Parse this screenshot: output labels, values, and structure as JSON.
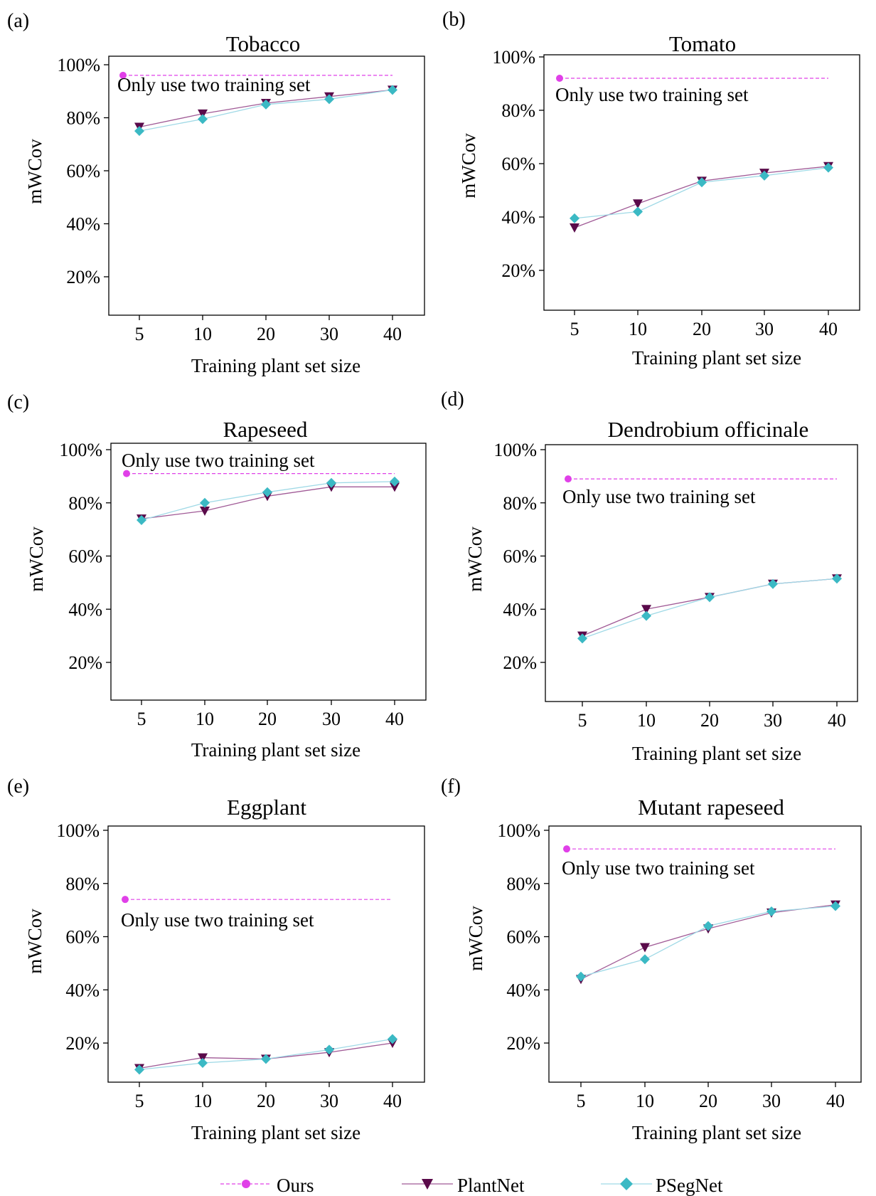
{
  "colors": {
    "ours": "#e040e8",
    "plantnet_marker": "#5a0a4a",
    "plantnet_line": "#a05a96",
    "psegnet_marker": "#3bb9c4",
    "psegnet_line": "#9fd9e6",
    "axis": "#000000"
  },
  "legend": {
    "ours": "Ours",
    "plantnet": "PlantNet",
    "psegnet": "PSegNet"
  },
  "chart_data": [
    {
      "type": "line",
      "panel_label": "(a)",
      "title": "Tobacco",
      "xlabel": "Training plant set size",
      "ylabel": "mWCov",
      "categories": [
        "5",
        "10",
        "20",
        "30",
        "40"
      ],
      "yticks": [
        "20%",
        "40%",
        "60%",
        "80%",
        "100%"
      ],
      "ylim": [
        0,
        100
      ],
      "ours": 96,
      "annotation": "Only use two training set",
      "series": [
        {
          "name": "PlantNet",
          "values": [
            76.5,
            81.5,
            85.5,
            88,
            90.5
          ]
        },
        {
          "name": "PSegNet",
          "values": [
            75,
            79.5,
            85,
            87,
            90.5
          ]
        }
      ]
    },
    {
      "type": "line",
      "panel_label": "(b)",
      "title": "Tomato",
      "xlabel": "Training plant set size",
      "ylabel": "mWCov",
      "categories": [
        "5",
        "10",
        "20",
        "30",
        "40"
      ],
      "yticks": [
        "20%",
        "40%",
        "60%",
        "80%",
        "100%"
      ],
      "ylim": [
        0,
        100
      ],
      "ours": 92,
      "annotation": "Only use two training set",
      "series": [
        {
          "name": "PlantNet",
          "values": [
            36,
            45,
            53.5,
            56.5,
            59
          ]
        },
        {
          "name": "PSegNet",
          "values": [
            39.5,
            42,
            53,
            55.5,
            58.5
          ]
        }
      ]
    },
    {
      "type": "line",
      "panel_label": "(c)",
      "title": "Rapeseed",
      "xlabel": "Training plant set size",
      "ylabel": "mWCov",
      "categories": [
        "5",
        "10",
        "20",
        "30",
        "40"
      ],
      "yticks": [
        "20%",
        "40%",
        "60%",
        "80%",
        "100%"
      ],
      "ylim": [
        0,
        100
      ],
      "ours": 91,
      "annotation": "Only use two training set",
      "series": [
        {
          "name": "PlantNet",
          "values": [
            74,
            77,
            82.5,
            86,
            86
          ]
        },
        {
          "name": "PSegNet",
          "values": [
            73.5,
            80,
            84,
            87.5,
            88
          ]
        }
      ]
    },
    {
      "type": "line",
      "panel_label": "(d)",
      "title": "Dendrobium officinale",
      "xlabel": "Training plant set size",
      "ylabel": "mWCov",
      "categories": [
        "5",
        "10",
        "20",
        "30",
        "40"
      ],
      "yticks": [
        "20%",
        "40%",
        "60%",
        "80%",
        "100%"
      ],
      "ylim": [
        0,
        100
      ],
      "ours": 89,
      "annotation": "Only use two training set",
      "series": [
        {
          "name": "PlantNet",
          "values": [
            30,
            40,
            44.5,
            49.5,
            51.5
          ]
        },
        {
          "name": "PSegNet",
          "values": [
            29,
            37.5,
            44.5,
            49.5,
            51.5
          ]
        }
      ]
    },
    {
      "type": "line",
      "panel_label": "(e)",
      "title": "Eggplant",
      "xlabel": "Training plant set size",
      "ylabel": "mWCov",
      "categories": [
        "5",
        "10",
        "20",
        "30",
        "40"
      ],
      "yticks": [
        "20%",
        "40%",
        "60%",
        "80%",
        "100%"
      ],
      "ylim": [
        0,
        100
      ],
      "ours": 74,
      "annotation": "Only use two training set",
      "series": [
        {
          "name": "PlantNet",
          "values": [
            10.5,
            14.5,
            14,
            16.5,
            20
          ]
        },
        {
          "name": "PSegNet",
          "values": [
            10,
            12.5,
            14,
            17.5,
            21.5
          ]
        }
      ]
    },
    {
      "type": "line",
      "panel_label": "(f)",
      "title": "Mutant rapeseed",
      "xlabel": "Training plant set size",
      "ylabel": "mWCov",
      "categories": [
        "5",
        "10",
        "20",
        "30",
        "40"
      ],
      "yticks": [
        "20%",
        "40%",
        "60%",
        "80%",
        "100%"
      ],
      "ylim": [
        0,
        100
      ],
      "ours": 93,
      "annotation": "Only use two training set",
      "series": [
        {
          "name": "PlantNet",
          "values": [
            44,
            56,
            63,
            69,
            72
          ]
        },
        {
          "name": "PSegNet",
          "values": [
            45,
            51.5,
            64,
            69.5,
            71.5
          ]
        }
      ]
    }
  ]
}
